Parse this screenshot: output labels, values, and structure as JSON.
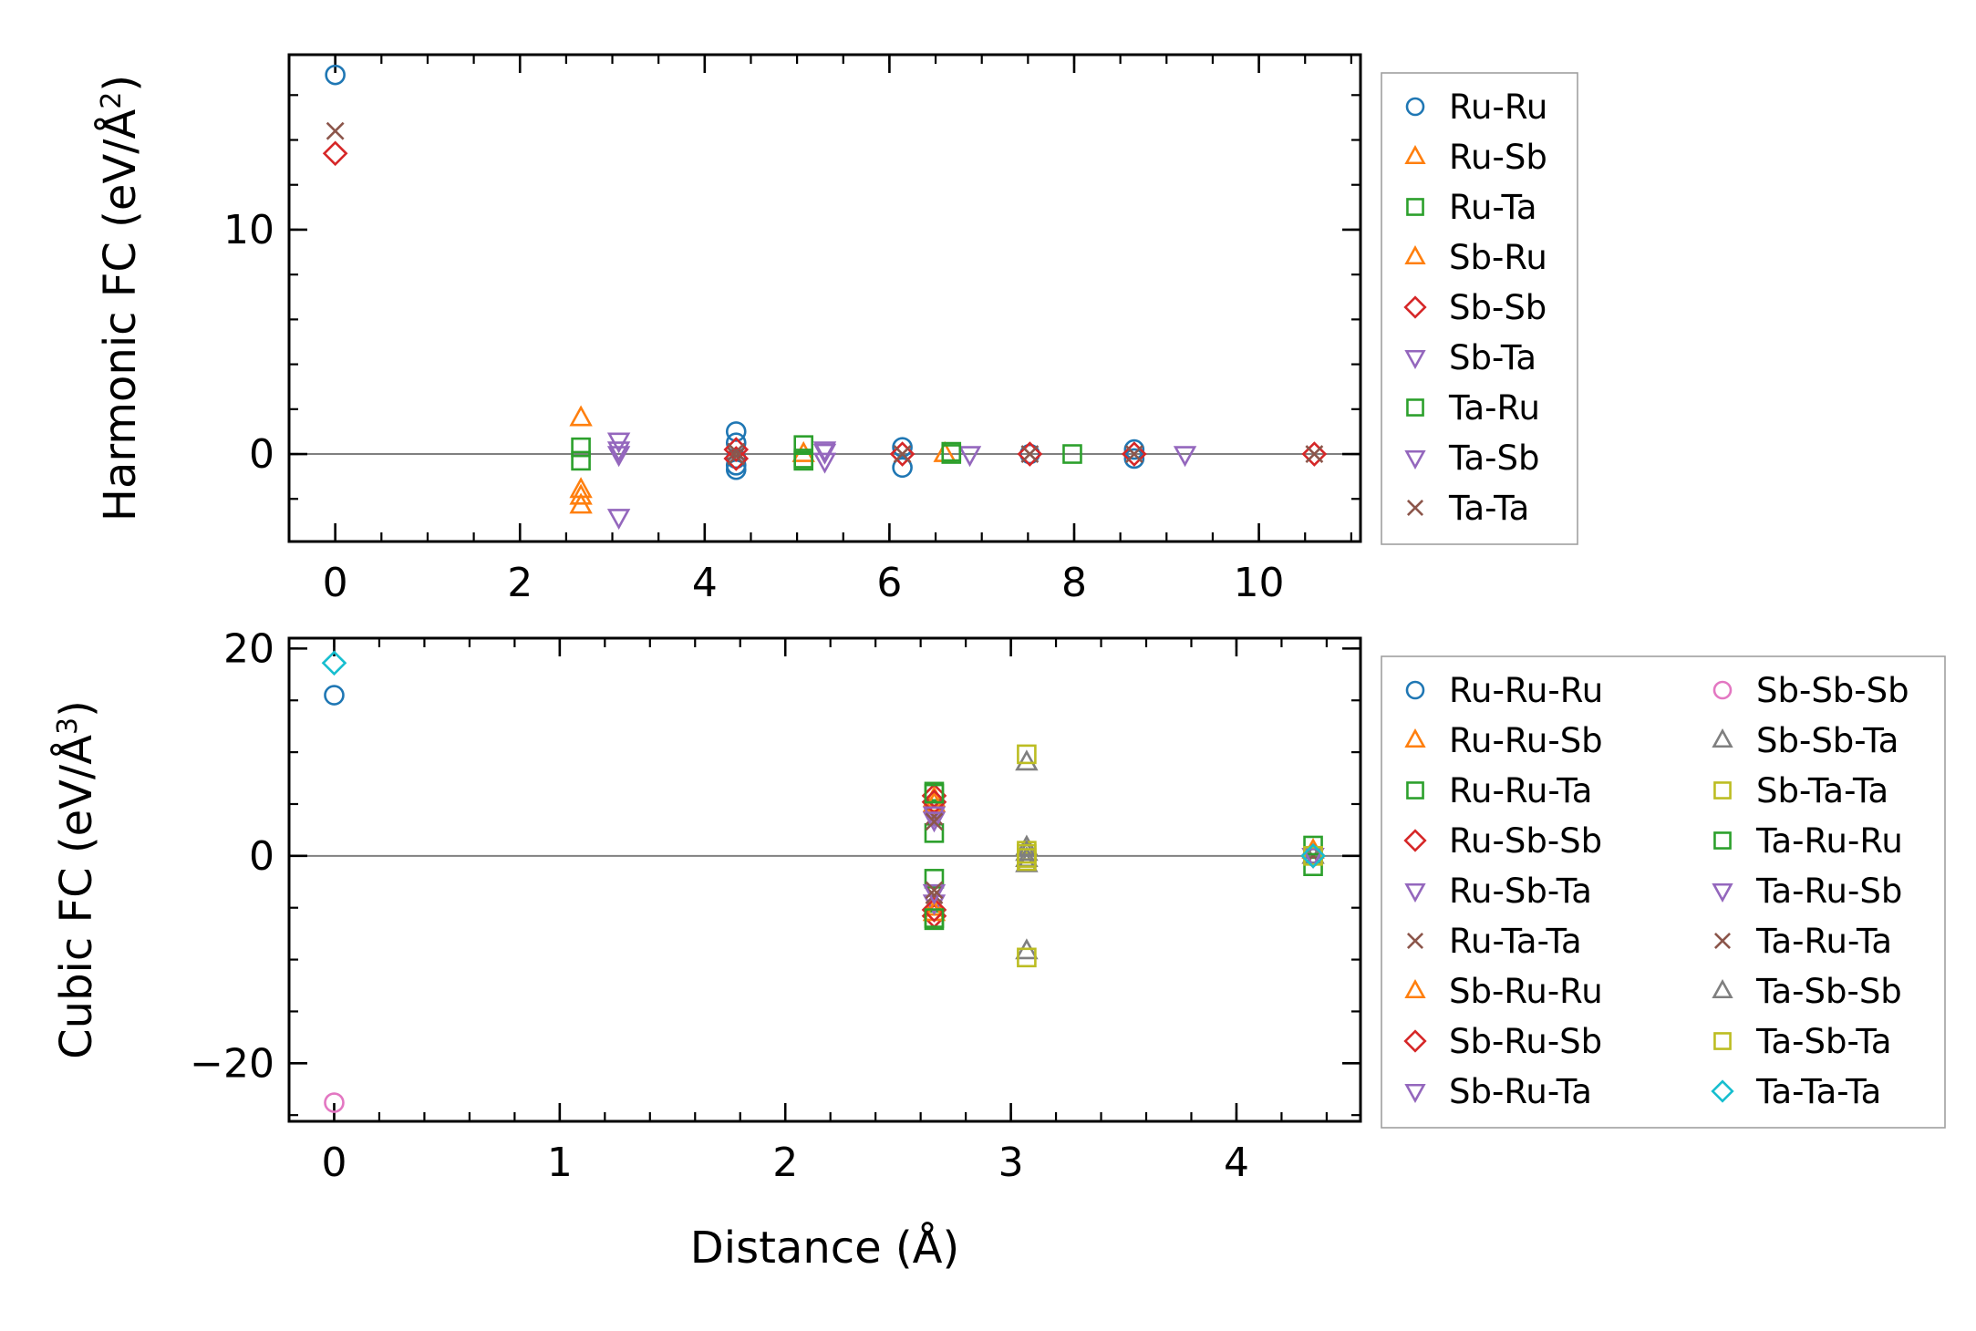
{
  "chart_data": [
    {
      "type": "scatter",
      "panel": "top",
      "ylabel_main": "Harmonic FC (eV/Å",
      "ylabel_sup": "2",
      "ylabel_close": ")",
      "xlabel": "",
      "xlim": [
        -0.5,
        11.1
      ],
      "ylim": [
        -3.9,
        17.8
      ],
      "xticks": [
        0,
        2,
        4,
        6,
        8,
        10
      ],
      "xtick_labels": [
        "0",
        "2",
        "4",
        "6",
        "8",
        "10"
      ],
      "yticks": [
        0,
        10
      ],
      "ytick_labels": [
        "0",
        "10"
      ],
      "reference_line_y": 0,
      "legend_position": "outside-right",
      "series": [
        {
          "name": "Ru-Ru",
          "marker": "circle",
          "color": "#1f77b4",
          "x": [
            0,
            4.34,
            4.34,
            4.34,
            4.34,
            4.34,
            6.14,
            6.14,
            7.52,
            8.65,
            8.65
          ],
          "y": [
            16.9,
            1.0,
            0.5,
            -0.2,
            -0.5,
            -0.7,
            0.3,
            -0.6,
            0.0,
            0.2,
            -0.2
          ]
        },
        {
          "name": "Ru-Sb",
          "marker": "triangle-up",
          "color": "#ff7f0e",
          "x": [
            2.66,
            2.66,
            5.07,
            6.6
          ],
          "y": [
            1.6,
            -1.6,
            0.0,
            0.0
          ]
        },
        {
          "name": "Ru-Ta",
          "marker": "square",
          "color": "#2ca02c",
          "x": [
            2.66,
            2.66,
            5.07,
            5.07,
            6.67,
            7.98
          ],
          "y": [
            0.3,
            -0.3,
            0.4,
            -0.2,
            0.1,
            0.0
          ]
        },
        {
          "name": "Sb-Ru",
          "marker": "triangle-up",
          "color": "#ff7f0e",
          "x": [
            2.66,
            2.66
          ],
          "y": [
            -1.9,
            -2.3
          ]
        },
        {
          "name": "Sb-Sb",
          "marker": "diamond",
          "color": "#d62728",
          "x": [
            0,
            4.34,
            4.34,
            6.14,
            7.52,
            8.65,
            10.6
          ],
          "y": [
            13.4,
            0.2,
            -0.2,
            0.0,
            0.0,
            0.0,
            0.0
          ]
        },
        {
          "name": "Sb-Ta",
          "marker": "triangle-down",
          "color": "#9467bd",
          "x": [
            3.07,
            3.07,
            3.07,
            5.3,
            5.3,
            6.87,
            9.2
          ],
          "y": [
            0.6,
            0.0,
            -2.8,
            0.2,
            -0.3,
            0.0,
            0.0
          ]
        },
        {
          "name": "Ta-Ru",
          "marker": "square",
          "color": "#2ca02c",
          "x": [
            5.07,
            6.67
          ],
          "y": [
            -0.3,
            0.0
          ]
        },
        {
          "name": "Ta-Sb",
          "marker": "triangle-down",
          "color": "#9467bd",
          "x": [
            3.07,
            5.3
          ],
          "y": [
            0.2,
            0.1
          ]
        },
        {
          "name": "Ta-Ta",
          "marker": "x",
          "color": "#8c564b",
          "x": [
            0,
            4.34,
            4.34,
            6.14,
            7.52,
            8.65,
            10.6
          ],
          "y": [
            14.4,
            0.1,
            -0.1,
            0.0,
            0.0,
            0.0,
            0.0
          ]
        }
      ]
    },
    {
      "type": "scatter",
      "panel": "bottom",
      "ylabel_main": "Cubic FC (eV/Å",
      "ylabel_sup": "3",
      "ylabel_close": ")",
      "xlabel": "Distance (Å)",
      "xlim": [
        -0.2,
        4.55
      ],
      "ylim": [
        -25.6,
        21.0
      ],
      "xticks": [
        0,
        1,
        2,
        3,
        4
      ],
      "xtick_labels": [
        "0",
        "1",
        "2",
        "3",
        "4"
      ],
      "yticks": [
        -20,
        0,
        20
      ],
      "ytick_labels": [
        "−20",
        "0",
        "20"
      ],
      "reference_line_y": 0,
      "legend_position": "outside-right",
      "series": [
        {
          "name": "Ru-Ru-Ru",
          "marker": "circle",
          "color": "#1f77b4",
          "x": [
            0,
            4.34
          ],
          "y": [
            15.5,
            0.0
          ]
        },
        {
          "name": "Ru-Ru-Sb",
          "marker": "triangle-up",
          "color": "#ff7f0e",
          "x": [
            2.66,
            2.66,
            4.34
          ],
          "y": [
            5.5,
            -5.0,
            0.5
          ]
        },
        {
          "name": "Ru-Ru-Ta",
          "marker": "square",
          "color": "#2ca02c",
          "x": [
            2.66,
            2.66,
            2.66,
            2.66,
            4.34
          ],
          "y": [
            6.2,
            2.2,
            -2.2,
            -6.2,
            -1.0
          ]
        },
        {
          "name": "Ru-Sb-Sb",
          "marker": "diamond",
          "color": "#d62728",
          "x": [
            2.66,
            2.66,
            4.34
          ],
          "y": [
            5.8,
            -5.8,
            0.0
          ]
        },
        {
          "name": "Ru-Sb-Ta",
          "marker": "triangle-down",
          "color": "#9467bd",
          "x": [
            2.66,
            2.66,
            4.34
          ],
          "y": [
            4.5,
            -4.5,
            0.0
          ]
        },
        {
          "name": "Ru-Ta-Ta",
          "marker": "x",
          "color": "#8c564b",
          "x": [
            2.66,
            2.66,
            4.34
          ],
          "y": [
            3.8,
            -3.8,
            0.0
          ]
        },
        {
          "name": "Sb-Ru-Ru",
          "marker": "triangle-up",
          "color": "#ff7f0e",
          "x": [
            2.66,
            2.66
          ],
          "y": [
            5.0,
            -5.5
          ]
        },
        {
          "name": "Sb-Ru-Sb",
          "marker": "diamond",
          "color": "#d62728",
          "x": [
            2.66,
            2.66
          ],
          "y": [
            5.2,
            -5.2
          ]
        },
        {
          "name": "Sb-Ru-Ta",
          "marker": "triangle-down",
          "color": "#9467bd",
          "x": [
            2.66,
            2.66
          ],
          "y": [
            3.5,
            -3.5
          ]
        },
        {
          "name": "Sb-Sb-Sb",
          "marker": "circle",
          "color": "#e377c2",
          "x": [
            0,
            4.34
          ],
          "y": [
            -23.8,
            0.0
          ]
        },
        {
          "name": "Sb-Sb-Ta",
          "marker": "triangle-up",
          "color": "#7f7f7f",
          "x": [
            3.07,
            3.07,
            3.07,
            3.07,
            4.34
          ],
          "y": [
            9.0,
            0.8,
            -0.8,
            -9.2,
            0.0
          ]
        },
        {
          "name": "Sb-Ta-Ta",
          "marker": "square",
          "color": "#bcbd22",
          "x": [
            3.07,
            3.07,
            3.07,
            3.07
          ],
          "y": [
            9.8,
            0.5,
            -0.5,
            -9.8
          ]
        },
        {
          "name": "Ta-Ru-Ru",
          "marker": "square",
          "color": "#2ca02c",
          "x": [
            2.66,
            2.66,
            4.34
          ],
          "y": [
            6.0,
            -6.0,
            1.0
          ]
        },
        {
          "name": "Ta-Ru-Sb",
          "marker": "triangle-down",
          "color": "#9467bd",
          "x": [
            2.66,
            4.34
          ],
          "y": [
            4.0,
            0.0
          ]
        },
        {
          "name": "Ta-Ru-Ta",
          "marker": "x",
          "color": "#8c564b",
          "x": [
            2.66,
            2.66
          ],
          "y": [
            3.3,
            -3.3
          ]
        },
        {
          "name": "Ta-Sb-Sb",
          "marker": "triangle-up",
          "color": "#7f7f7f",
          "x": [
            3.07,
            3.07
          ],
          "y": [
            0.3,
            -0.3
          ]
        },
        {
          "name": "Ta-Sb-Ta",
          "marker": "square",
          "color": "#bcbd22",
          "x": [
            3.07,
            3.07,
            4.34
          ],
          "y": [
            0.2,
            -0.2,
            0.0
          ]
        },
        {
          "name": "Ta-Ta-Ta",
          "marker": "diamond",
          "color": "#17becf",
          "x": [
            0,
            4.34
          ],
          "y": [
            18.6,
            0.0
          ]
        }
      ]
    }
  ]
}
